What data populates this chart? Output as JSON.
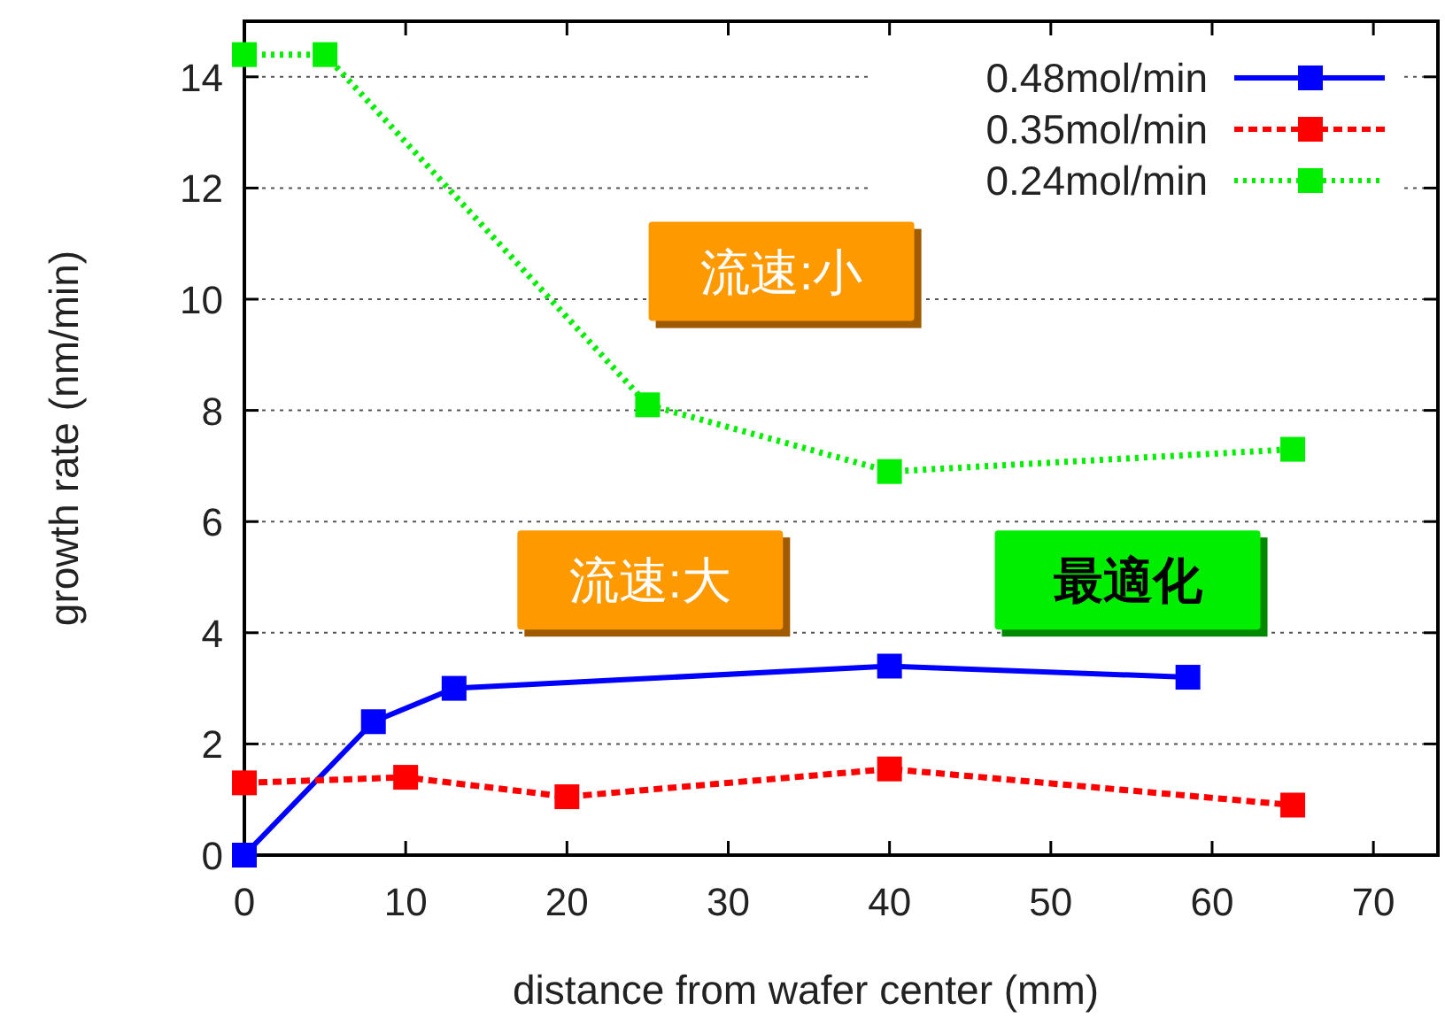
{
  "chart_data": {
    "type": "line",
    "xlabel": "distance from wafer center (mm)",
    "ylabel": "growth rate (nm/min)",
    "xlim": [
      0,
      74
    ],
    "xticks": [
      0,
      10,
      20,
      30,
      40,
      50,
      60,
      70
    ],
    "ylim": [
      0,
      15
    ],
    "yticks": [
      0,
      2,
      4,
      6,
      8,
      10,
      12,
      14
    ],
    "grid": "y",
    "legend": "top right",
    "marker": "square",
    "series": [
      {
        "name": "0.48mol/min",
        "color": "#0000ff",
        "line_style": "solid",
        "x": [
          0,
          8,
          13,
          40,
          58.5
        ],
        "values": [
          0,
          2.4,
          3.0,
          3.4,
          3.2
        ]
      },
      {
        "name": "0.35mol/min",
        "color": "#ff0000",
        "line_style": "dashed",
        "x": [
          0,
          10,
          20,
          40,
          65
        ],
        "values": [
          1.3,
          1.4,
          1.05,
          1.55,
          0.9
        ]
      },
      {
        "name": "0.24mol/min",
        "color": "#00ee00",
        "line_style": "dotted",
        "x": [
          0,
          5,
          25,
          40,
          65
        ],
        "values": [
          14.4,
          14.4,
          8.1,
          6.9,
          7.3
        ]
      }
    ],
    "annotations": [
      "流速:小",
      "流速:大",
      "最適化"
    ]
  }
}
